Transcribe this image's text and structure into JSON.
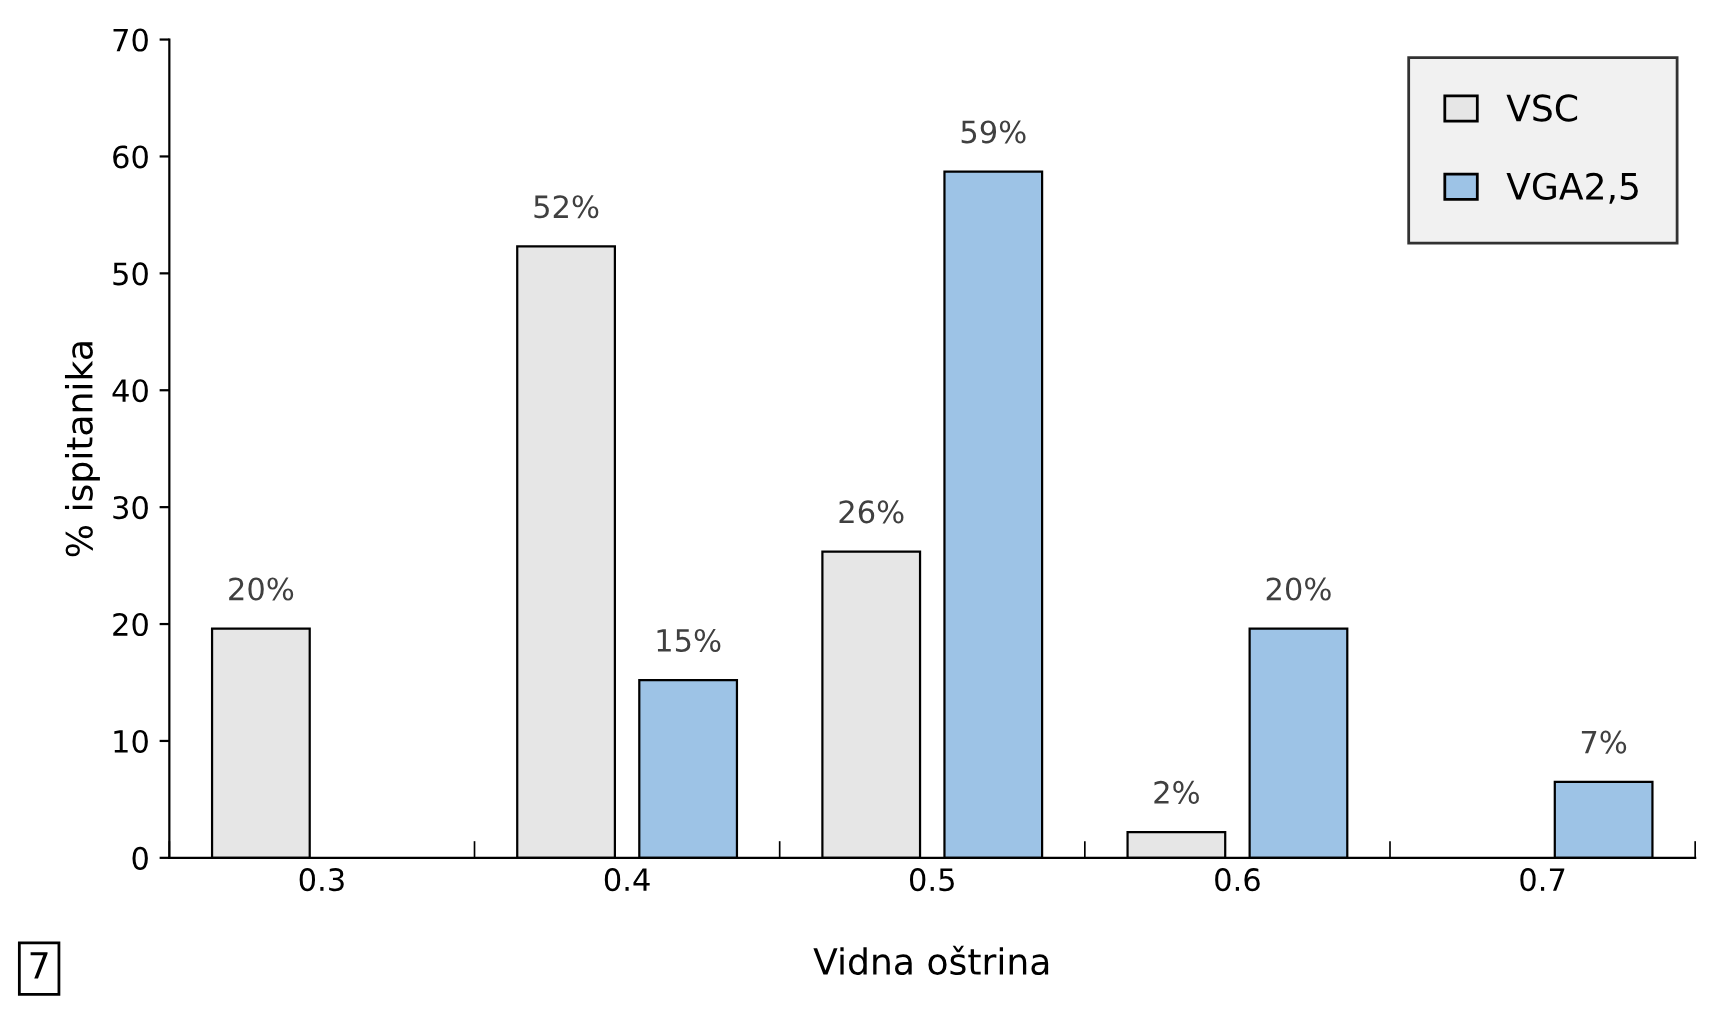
{
  "chart_data": {
    "type": "bar",
    "xlabel": "Vidna oštrina",
    "ylabel": "% ispitanika",
    "categories": [
      "0.3",
      "0.4",
      "0.5",
      "0.6",
      "0.7"
    ],
    "series": [
      {
        "name": "VSC",
        "color": "#e6e6e6",
        "values": [
          19.6,
          52.3,
          26.2,
          2.2,
          null
        ],
        "value_labels": [
          "20%",
          "52%",
          "26%",
          "2%",
          null
        ]
      },
      {
        "name": "VGA2,5",
        "color": "#9dc3e6",
        "values": [
          null,
          15.2,
          58.7,
          19.6,
          6.5
        ],
        "value_labels": [
          null,
          "15%",
          "59%",
          "20%",
          "7%"
        ]
      }
    ],
    "ylim": [
      0,
      70
    ],
    "yticks": [
      0,
      10,
      20,
      30,
      40,
      50,
      60,
      70
    ],
    "grid": false,
    "legend": "top right",
    "annotations": [
      "7"
    ]
  }
}
